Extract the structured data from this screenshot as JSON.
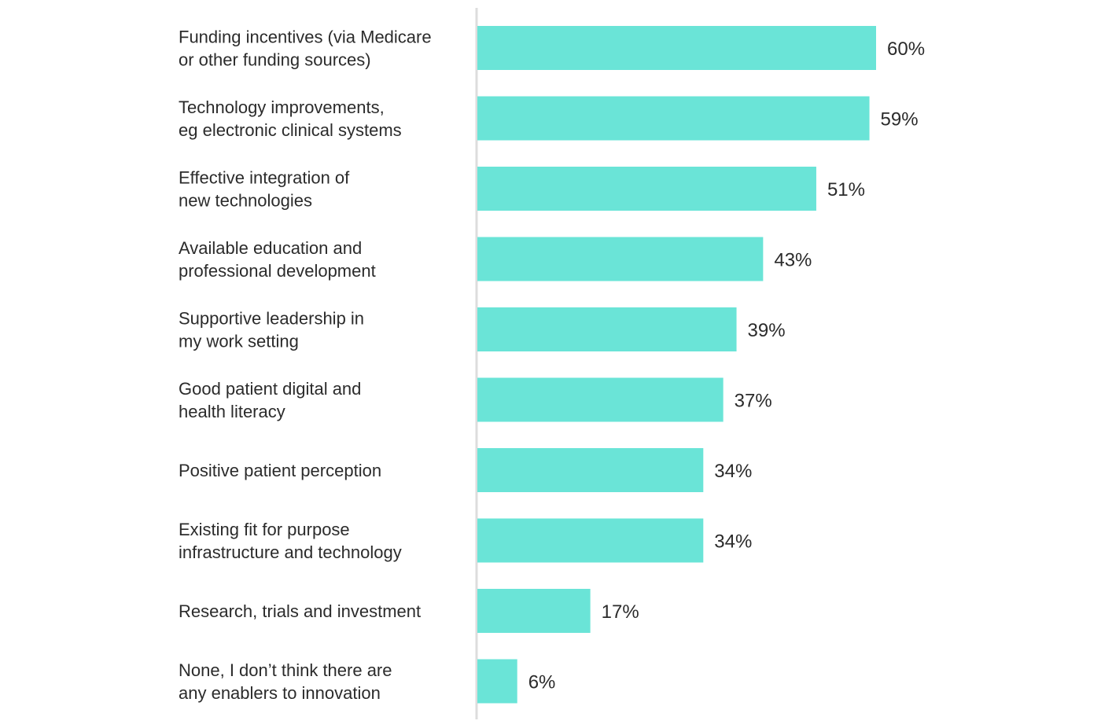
{
  "chart_data": {
    "type": "bar",
    "orientation": "horizontal",
    "title": "",
    "xlabel": "",
    "ylabel": "",
    "xlim": [
      0,
      60
    ],
    "grid": false,
    "bar_color": "#6ae4d7",
    "axis_color": "#dddddd",
    "text_color": "#2b2b2b",
    "categories": [
      [
        "Funding incentives (via Medicare",
        "or other funding sources)"
      ],
      [
        "Technology improvements,",
        "eg electronic clinical systems"
      ],
      [
        "Effective integration of",
        "new technologies"
      ],
      [
        "Available education and",
        "professional development"
      ],
      [
        "Supportive leadership in",
        "my work setting"
      ],
      [
        "Good patient digital and",
        "health literacy"
      ],
      [
        "Positive patient perception"
      ],
      [
        "Existing fit for purpose",
        "infrastructure and technology"
      ],
      [
        "Research, trials and investment"
      ],
      [
        "None, I don’t think there are",
        "any enablers to innovation"
      ]
    ],
    "values": [
      60,
      59,
      51,
      43,
      39,
      37,
      34,
      34,
      17,
      6
    ],
    "value_labels": [
      "60%",
      "59%",
      "51%",
      "43%",
      "39%",
      "37%",
      "34%",
      "34%",
      "17%",
      "6%"
    ]
  }
}
